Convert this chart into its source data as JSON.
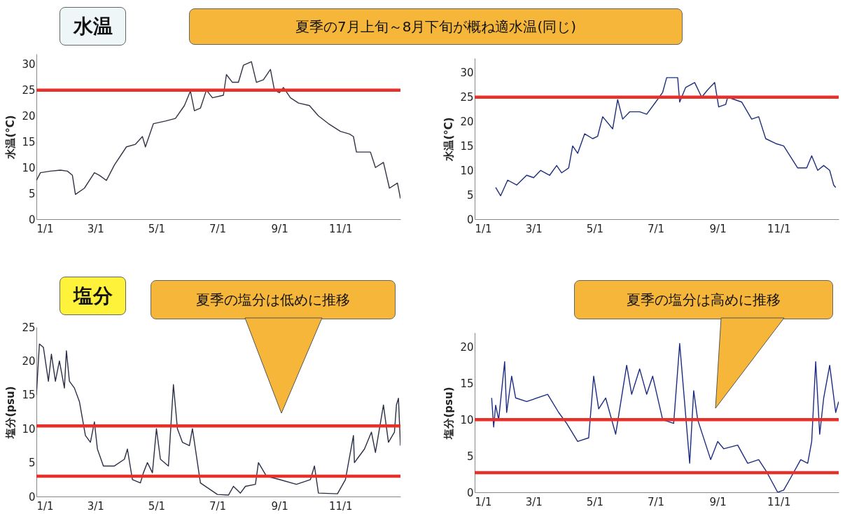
{
  "chart_data": [
    {
      "type": "line",
      "annotations": [
        "水温",
        "夏季の7月上旬～8月下旬が概ね適水温(同じ)"
      ],
      "ylabel": "水温(°C)",
      "xlim": [
        "--01-01",
        "--12-31"
      ],
      "ylim": [
        0,
        32
      ],
      "yticks": [
        0,
        5,
        10,
        15,
        20,
        25,
        30
      ],
      "xticks": [
        {
          "value": "--01-01",
          "label": "1/1"
        },
        {
          "value": "--03-01",
          "label": "3/1"
        },
        {
          "value": "--05-01",
          "label": "5/1"
        },
        {
          "value": "--07-01",
          "label": "7/1"
        },
        {
          "value": "--09-01",
          "label": "9/1"
        },
        {
          "value": "--11-01",
          "label": "11/1"
        }
      ],
      "legend": false,
      "grid": false,
      "ref_lines": [
        {
          "axis": "y",
          "value": 25,
          "color": "#e8302a"
        }
      ],
      "series": [
        {
          "color": "#333344",
          "x": [
            "--01-01",
            "--01-05",
            "--01-15",
            "--01-25",
            "--02-01",
            "--02-06",
            "--02-09",
            "--02-18",
            "--02-28",
            "--03-05",
            "--03-12",
            "--03-20",
            "--04-01",
            "--04-10",
            "--04-17",
            "--04-20",
            "--04-28",
            "--05-10",
            "--05-20",
            "--05-29",
            "--06-04",
            "--06-08",
            "--06-14",
            "--06-20",
            "--06-26",
            "--07-07",
            "--07-10",
            "--07-16",
            "--07-22",
            "--07-27",
            "--08-04",
            "--08-09",
            "--08-16",
            "--08-23",
            "--08-27",
            "--09-01",
            "--09-05",
            "--09-12",
            "--09-20",
            "--10-01",
            "--10-10",
            "--10-20",
            "--11-01",
            "--11-10",
            "--11-14",
            "--11-17",
            "--12-01",
            "--12-06",
            "--12-14",
            "--12-20",
            "--12-28",
            "--12-31"
          ],
          "values": [
            7.5,
            9,
            9.3,
            9.5,
            9.3,
            8.5,
            4.8,
            6,
            9,
            8.5,
            7.5,
            10.5,
            14,
            14.5,
            16,
            14,
            18.5,
            19,
            19.5,
            22,
            24.8,
            21,
            21.5,
            25,
            23.5,
            24,
            28,
            26.5,
            26.5,
            29.8,
            30.5,
            26.5,
            27,
            29,
            25,
            24.5,
            25.5,
            23.5,
            22.5,
            22,
            20,
            18.5,
            17,
            16.5,
            16,
            13,
            13,
            10,
            11,
            6,
            7,
            4
          ]
        }
      ]
    },
    {
      "type": "line",
      "ylabel": "水温(°C)",
      "xlim": [
        "--01-01",
        "--12-31"
      ],
      "ylim": [
        0,
        33
      ],
      "yticks": [
        0,
        5,
        10,
        15,
        20,
        25,
        30
      ],
      "xticks": [
        {
          "value": "--01-01",
          "label": "1/1"
        },
        {
          "value": "--03-01",
          "label": "3/1"
        },
        {
          "value": "--05-01",
          "label": "5/1"
        },
        {
          "value": "--07-01",
          "label": "7/1"
        },
        {
          "value": "--09-01",
          "label": "9/1"
        },
        {
          "value": "--11-01",
          "label": "11/1"
        }
      ],
      "legend": false,
      "grid": false,
      "ref_lines": [
        {
          "axis": "y",
          "value": 25,
          "color": "#e8302a"
        }
      ],
      "series": [
        {
          "color": "#1f2f7a",
          "x": [
            "--01-22",
            "--01-27",
            "--02-03",
            "--02-12",
            "--02-22",
            "--03-01",
            "--03-08",
            "--03-17",
            "--03-24",
            "--03-29",
            "--04-05",
            "--04-09",
            "--04-14",
            "--04-21",
            "--04-29",
            "--05-04",
            "--05-09",
            "--05-19",
            "--05-24",
            "--05-29",
            "--06-05",
            "--06-15",
            "--06-22",
            "--07-01",
            "--07-08",
            "--07-12",
            "--07-23",
            "--07-25",
            "--07-31",
            "--08-09",
            "--08-16",
            "--08-22",
            "--08-29",
            "--09-02",
            "--09-09",
            "--09-11",
            "--09-25",
            "--10-05",
            "--10-12",
            "--10-19",
            "--10-29",
            "--11-06",
            "--11-20",
            "--11-29",
            "--12-04",
            "--12-10",
            "--12-16",
            "--12-22",
            "--12-26",
            "--12-28"
          ],
          "values": [
            6.5,
            4.8,
            8,
            7,
            9,
            8.5,
            10,
            9,
            11,
            9.5,
            10.5,
            15,
            13.5,
            17.5,
            16.5,
            17,
            21,
            18.5,
            24.5,
            20.5,
            22,
            22,
            21.5,
            24,
            26,
            29,
            29,
            24,
            27,
            28,
            25,
            26.5,
            28,
            23,
            23.5,
            25,
            24,
            20.5,
            21,
            16.5,
            15.5,
            15,
            10.5,
            10.5,
            13,
            10,
            11,
            10,
            7,
            6.5
          ]
        }
      ]
    },
    {
      "type": "line",
      "annotations": [
        "塩分",
        "夏季の塩分は低めに推移"
      ],
      "ylabel": "塩分(psu)",
      "xlim": [
        "--01-01",
        "--12-31"
      ],
      "ylim": [
        0,
        25
      ],
      "yticks": [
        0,
        5,
        10,
        15,
        20,
        25
      ],
      "xticks": [
        {
          "value": "--01-01",
          "label": "1/1"
        },
        {
          "value": "--03-01",
          "label": "3/1"
        },
        {
          "value": "--05-01",
          "label": "5/1"
        },
        {
          "value": "--07-01",
          "label": "7/1"
        },
        {
          "value": "--09-01",
          "label": "9/1"
        },
        {
          "value": "--11-01",
          "label": "11/1"
        }
      ],
      "legend": false,
      "grid": false,
      "ref_lines": [
        {
          "axis": "y",
          "value": 10.4,
          "color": "#e8302a"
        },
        {
          "axis": "y",
          "value": 3,
          "color": "#e8302a"
        }
      ],
      "series": [
        {
          "color": "#2a2f45",
          "x": [
            "--01-01",
            "--01-04",
            "--01-08",
            "--01-13",
            "--01-16",
            "--01-20",
            "--01-24",
            "--01-29",
            "--01-31",
            "--02-03",
            "--02-08",
            "--02-13",
            "--02-19",
            "--02-24",
            "--02-28",
            "--03-03",
            "--03-09",
            "--03-20",
            "--03-30",
            "--04-02",
            "--04-07",
            "--04-15",
            "--04-18",
            "--04-22",
            "--04-27",
            "--05-01",
            "--05-05",
            "--05-13",
            "--05-18",
            "--05-22",
            "--05-27",
            "--06-03",
            "--06-06",
            "--06-14",
            "--07-01",
            "--07-12",
            "--07-17",
            "--07-24",
            "--07-29",
            "--08-08",
            "--08-11",
            "--08-19",
            "--09-01",
            "--09-18",
            "--10-02",
            "--10-06",
            "--10-10",
            "--10-29",
            "--11-06",
            "--11-14",
            "--11-15",
            "--11-25",
            "--12-02",
            "--12-06",
            "--12-14",
            "--12-19",
            "--12-25",
            "--12-27",
            "--12-29",
            "--12-31"
          ],
          "values": [
            15,
            22.5,
            22,
            17,
            21,
            17,
            20,
            16,
            21.5,
            17,
            16,
            14,
            9,
            8,
            11,
            7,
            4.5,
            4.5,
            5.5,
            7,
            2.5,
            2,
            3.5,
            5,
            3.5,
            10,
            5.5,
            4.5,
            16.5,
            10,
            8,
            7.5,
            10,
            2,
            0.3,
            0.2,
            1.5,
            0.5,
            1.5,
            1.8,
            5,
            3,
            2.5,
            1.8,
            2.5,
            4.5,
            0.5,
            0.4,
            2.5,
            9,
            5,
            7,
            9.5,
            6.5,
            13.5,
            8,
            9.5,
            13.5,
            14.5,
            7.5
          ]
        }
      ]
    },
    {
      "type": "line",
      "annotations": [
        "夏季の塩分は高めに推移"
      ],
      "ylabel": "塩分(psu)",
      "xlim": [
        "--01-01",
        "--12-31"
      ],
      "ylim": [
        0,
        22
      ],
      "yticks": [
        0,
        5,
        10,
        15,
        20
      ],
      "xticks": [
        {
          "value": "--01-01",
          "label": "1/1"
        },
        {
          "value": "--03-01",
          "label": "3/1"
        },
        {
          "value": "--05-01",
          "label": "5/1"
        },
        {
          "value": "--07-01",
          "label": "7/1"
        },
        {
          "value": "--09-01",
          "label": "9/1"
        },
        {
          "value": "--11-01",
          "label": "11/1"
        }
      ],
      "legend": false,
      "grid": false,
      "ref_lines": [
        {
          "axis": "y",
          "value": 10,
          "color": "#e8302a"
        },
        {
          "axis": "y",
          "value": 2.7,
          "color": "#e8302a"
        }
      ],
      "series": [
        {
          "color": "#1c2c80",
          "x": [
            "--01-18",
            "--01-20",
            "--01-22",
            "--01-25",
            "--01-31",
            "--02-02",
            "--02-07",
            "--02-11",
            "--02-22",
            "--03-15",
            "--03-26",
            "--04-03",
            "--04-14",
            "--04-25",
            "--04-30",
            "--05-05",
            "--05-12",
            "--05-22",
            "--06-02",
            "--06-07",
            "--06-15",
            "--06-22",
            "--06-28",
            "--07-08",
            "--07-19",
            "--07-25",
            "--08-04",
            "--08-08",
            "--08-12",
            "--08-25",
            "--09-01",
            "--09-07",
            "--09-21",
            "--10-01",
            "--10-12",
            "--10-20",
            "--10-31",
            "--11-06",
            "--11-13",
            "--11-23",
            "--11-30",
            "--12-04",
            "--12-08",
            "--12-12",
            "--12-16",
            "--12-22",
            "--12-28",
            "--12-31"
          ],
          "values": [
            13,
            9,
            12,
            10,
            18,
            11,
            16,
            13,
            12.5,
            13.5,
            11,
            9.5,
            7,
            7.5,
            16,
            11.5,
            13,
            8,
            17.5,
            13.5,
            17,
            13.5,
            16,
            10,
            9.5,
            20.5,
            4,
            14,
            10,
            4.5,
            7,
            6,
            6.5,
            4,
            4.5,
            2.8,
            0,
            0.3,
            2,
            4.5,
            4,
            7,
            18,
            8,
            13,
            17.5,
            11,
            12.5
          ]
        }
      ]
    }
  ]
}
